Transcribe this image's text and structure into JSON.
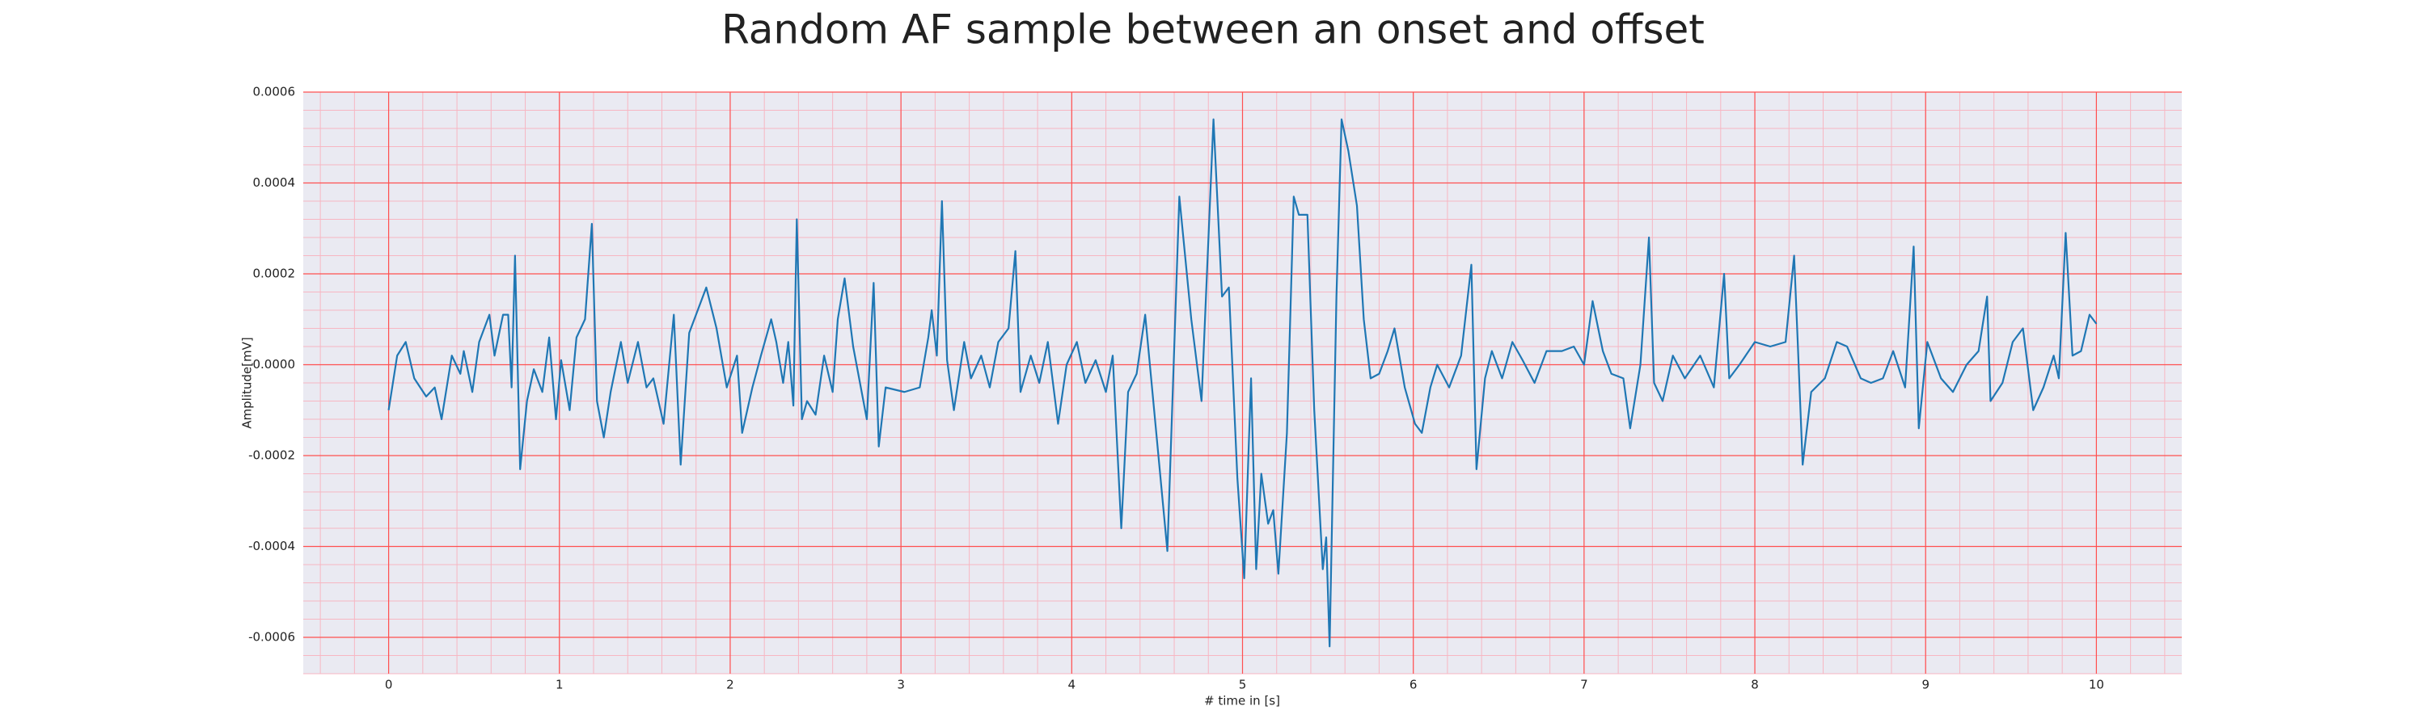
{
  "chart_data": {
    "type": "line",
    "title": "Random AF sample between an onset and offset",
    "xlabel": "# time in [s]",
    "ylabel": "Amplitude[mV]",
    "color": "#1f77b4",
    "grid": true,
    "minor_grid_divisions": 5,
    "xlim": [
      -0.5,
      10.5
    ],
    "ylim": [
      -0.00068,
      0.0006
    ],
    "xticks": [
      0,
      1,
      2,
      3,
      4,
      5,
      6,
      7,
      8,
      9,
      10
    ],
    "yticks": [
      -0.0006,
      -0.0004,
      -0.0002,
      {
        "value": 0,
        "label": "0.0000"
      },
      0.0002,
      0.0004,
      0.0006
    ],
    "x": [
      0,
      0.05,
      0.1,
      0.15,
      0.22,
      0.27,
      0.31,
      0.37,
      0.42,
      0.44,
      0.49,
      0.53,
      0.59,
      0.62,
      0.67,
      0.7,
      0.72,
      0.74,
      0.77,
      0.81,
      0.85,
      0.9,
      0.94,
      0.98,
      1.01,
      1.06,
      1.1,
      1.15,
      1.19,
      1.22,
      1.26,
      1.3,
      1.36,
      1.4,
      1.46,
      1.51,
      1.55,
      1.61,
      1.67,
      1.71,
      1.76,
      1.86,
      1.92,
      1.98,
      2.04,
      2.07,
      2.13,
      2.18,
      2.24,
      2.27,
      2.31,
      2.34,
      2.37,
      2.39,
      2.42,
      2.45,
      2.5,
      2.55,
      2.6,
      2.63,
      2.67,
      2.72,
      2.8,
      2.84,
      2.87,
      2.91,
      3.02,
      3.11,
      3.16,
      3.18,
      3.21,
      3.24,
      3.27,
      3.31,
      3.37,
      3.41,
      3.47,
      3.52,
      3.57,
      3.63,
      3.67,
      3.7,
      3.76,
      3.81,
      3.86,
      3.92,
      3.97,
      4.03,
      4.08,
      4.14,
      4.2,
      4.24,
      4.29,
      4.33,
      4.38,
      4.43,
      4.56,
      4.63,
      4.7,
      4.76,
      4.83,
      4.88,
      4.92,
      4.97,
      5.01,
      5.05,
      5.08,
      5.11,
      5.15,
      5.18,
      5.21,
      5.26,
      5.3,
      5.33,
      5.38,
      5.42,
      5.47,
      5.49,
      5.51,
      5.55,
      5.58,
      5.62,
      5.67,
      5.71,
      5.75,
      5.8,
      5.85,
      5.89,
      5.95,
      6.01,
      6.05,
      6.1,
      6.14,
      6.21,
      6.28,
      6.34,
      6.37,
      6.42,
      6.46,
      6.52,
      6.58,
      6.64,
      6.71,
      6.78,
      6.87,
      6.94,
      7.0,
      7.05,
      7.11,
      7.16,
      7.23,
      7.27,
      7.33,
      7.38,
      7.41,
      7.46,
      7.52,
      7.59,
      7.68,
      7.76,
      7.82,
      7.85,
      7.91,
      8.0,
      8.09,
      8.18,
      8.23,
      8.25,
      8.28,
      8.33,
      8.41,
      8.48,
      8.54,
      8.62,
      8.68,
      8.75,
      8.81,
      8.88,
      8.93,
      8.96,
      9.01,
      9.09,
      9.16,
      9.24,
      9.31,
      9.36,
      9.38,
      9.45,
      9.51,
      9.57,
      9.63,
      9.69,
      9.75,
      9.78,
      9.82,
      9.86,
      9.91,
      9.96,
      10.0
    ],
    "values": [
      -0.0001,
      2e-05,
      5e-05,
      -3e-05,
      -7e-05,
      -5e-05,
      -0.00012,
      2e-05,
      -2e-05,
      3e-05,
      -6e-05,
      5e-05,
      0.00011,
      2e-05,
      0.00011,
      0.00011,
      -5e-05,
      0.00024,
      -0.00023,
      -8e-05,
      -1e-05,
      -6e-05,
      6e-05,
      -0.00012,
      1e-05,
      -0.0001,
      6e-05,
      0.0001,
      0.00031,
      -8e-05,
      -0.00016,
      -6e-05,
      5e-05,
      -4e-05,
      5e-05,
      -5e-05,
      -3e-05,
      -0.00013,
      0.00011,
      -0.00022,
      7e-05,
      0.00017,
      8e-05,
      -5e-05,
      2e-05,
      -0.00015,
      -5e-05,
      2e-05,
      0.0001,
      5e-05,
      -4e-05,
      5e-05,
      -9e-05,
      0.00032,
      -0.00012,
      -8e-05,
      -0.00011,
      2e-05,
      -6e-05,
      0.0001,
      0.00019,
      4e-05,
      -0.00012,
      0.00018,
      -0.00018,
      -5e-05,
      -6e-05,
      -5e-05,
      6e-05,
      0.00012,
      2e-05,
      0.00036,
      1e-05,
      -0.0001,
      5e-05,
      -3e-05,
      2e-05,
      -5e-05,
      5e-05,
      8e-05,
      0.00025,
      -6e-05,
      2e-05,
      -4e-05,
      5e-05,
      -0.00013,
      0,
      5e-05,
      -4e-05,
      1e-05,
      -6e-05,
      2e-05,
      -0.00036,
      -6e-05,
      -2e-05,
      0.00011,
      -0.00041,
      0.00037,
      0.0001,
      -8e-05,
      0.00054,
      0.00015,
      0.00017,
      -0.00025,
      -0.00047,
      -3e-05,
      -0.00045,
      -0.00024,
      -0.00035,
      -0.00032,
      -0.00046,
      -0.00015,
      0.00037,
      0.00033,
      0.00033,
      -0.0001,
      -0.00045,
      -0.00038,
      -0.00062,
      0.00015,
      0.00054,
      0.00047,
      0.00035,
      0.0001,
      -3e-05,
      -2e-05,
      3e-05,
      8e-05,
      -5e-05,
      -0.00013,
      -0.00015,
      -5e-05,
      0,
      -5e-05,
      2e-05,
      0.00022,
      -0.00023,
      -3e-05,
      3e-05,
      -3e-05,
      5e-05,
      1e-05,
      -4e-05,
      3e-05,
      3e-05,
      4e-05,
      0,
      0.00014,
      3e-05,
      -2e-05,
      -3e-05,
      -0.00014,
      0,
      0.00028,
      -4e-05,
      -8e-05,
      2e-05,
      -3e-05,
      2e-05,
      -5e-05,
      0.0002,
      -3e-05,
      0,
      5e-05,
      4e-05,
      5e-05,
      0.00024,
      6e-05,
      -0.00022,
      -6e-05,
      -3e-05,
      5e-05,
      4e-05,
      -3e-05,
      -4e-05,
      -3e-05,
      3e-05,
      -5e-05,
      0.00026,
      -0.00014,
      5e-05,
      -3e-05,
      -6e-05,
      0,
      3e-05,
      0.00015,
      -8e-05,
      -4e-05,
      5e-05,
      8e-05,
      -0.0001,
      -5e-05,
      2e-05,
      -3e-05,
      0.00029,
      2e-05,
      3e-05,
      0.00011,
      9e-05
    ]
  }
}
